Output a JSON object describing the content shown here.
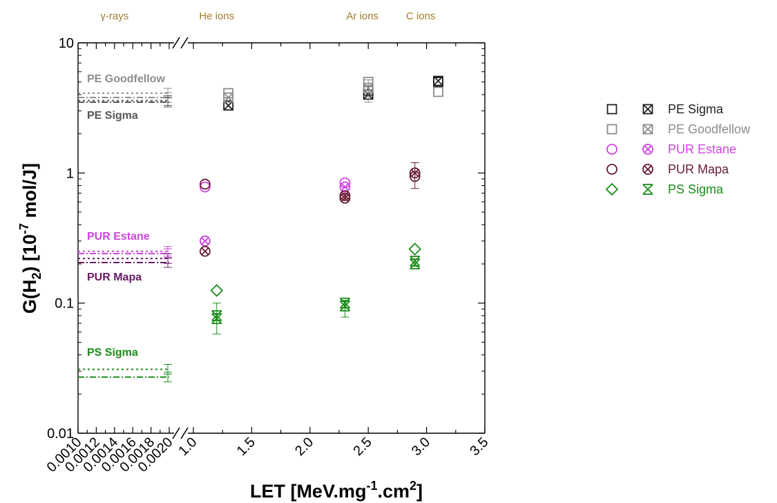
{
  "chart_data": {
    "type": "scatter",
    "xlabel": "LET [MeV.mg-1.cm2]",
    "ylabel": "G(H2) [10-7 mol/J]",
    "yscale": "log",
    "ylim": [
      0.01,
      10
    ],
    "y_tick_labels": [
      "10",
      "1",
      "0.1",
      "0.01"
    ],
    "x_axis_broken": true,
    "x_segment_gamma": {
      "xlim": [
        0.001,
        0.002
      ],
      "tick_labels": [
        "0.0010",
        "0.0012",
        "0.0014",
        "0.0016",
        "0.0018",
        "0.0020"
      ]
    },
    "x_segment_ions": {
      "xlim": [
        1.0,
        3.5
      ],
      "tick_labels": [
        "1.0",
        "1.5",
        "2.0",
        "2.5",
        "3.0",
        "3.5"
      ]
    },
    "radiation_labels": [
      {
        "text": "γ-rays",
        "x": 0.0014
      },
      {
        "text": "He ions",
        "x": 1.2
      },
      {
        "text": "Ar ions",
        "x": 2.45
      },
      {
        "text": "C ions",
        "x": 2.95
      }
    ],
    "gamma_reference": [
      {
        "label": "PE Goodfellow",
        "color": "#8c8c8c",
        "values": [
          4.1,
          3.8
        ]
      },
      {
        "label": "PE Sigma",
        "color": "#555555",
        "values": [
          3.6,
          3.5
        ]
      },
      {
        "label": "PUR Estane",
        "color": "#cc44dd",
        "values": [
          0.25,
          0.24
        ]
      },
      {
        "label": "PUR Mapa",
        "color": "#661a66",
        "values": [
          0.22,
          0.205
        ]
      },
      {
        "label": "PS Sigma",
        "color": "#1a8c1a",
        "values": [
          0.031,
          0.027
        ]
      }
    ],
    "series": [
      {
        "name": "PE Sigma",
        "color": "#222222",
        "open": [
          {
            "x": 2.5,
            "y": 4.3
          },
          {
            "x": 3.1,
            "y": 5.0
          }
        ],
        "crossed": [
          {
            "x": 1.3,
            "y": 3.3
          },
          {
            "x": 2.5,
            "y": 4.0
          },
          {
            "x": 3.1,
            "y": 5.1
          }
        ]
      },
      {
        "name": "PE Goodfellow",
        "color": "#8c8c8c",
        "open": [
          {
            "x": 1.3,
            "y": 4.1
          },
          {
            "x": 2.5,
            "y": 5.0
          },
          {
            "x": 3.1,
            "y": 4.2
          }
        ],
        "crossed": [
          {
            "x": 1.3,
            "y": 3.8
          },
          {
            "x": 2.5,
            "y": 4.5
          }
        ]
      },
      {
        "name": "PUR Estane",
        "color": "#cc44dd",
        "open": [
          {
            "x": 1.1,
            "y": 0.78
          },
          {
            "x": 2.3,
            "y": 0.84
          }
        ],
        "crossed": [
          {
            "x": 1.1,
            "y": 0.3
          },
          {
            "x": 2.3,
            "y": 0.78
          }
        ]
      },
      {
        "name": "PUR Mapa",
        "color": "#661a33",
        "open": [
          {
            "x": 1.1,
            "y": 0.82
          },
          {
            "x": 2.9,
            "y": 0.94
          }
        ],
        "crossed": [
          {
            "x": 1.1,
            "y": 0.25
          },
          {
            "x": 2.3,
            "y": 0.67
          },
          {
            "x": 2.3,
            "y": 0.64
          },
          {
            "x": 2.9,
            "y": 1.0
          }
        ]
      },
      {
        "name": "PS Sigma",
        "color": "#1a8c1a",
        "open": [
          {
            "x": 1.2,
            "y": 0.125
          },
          {
            "x": 2.9,
            "y": 0.26
          }
        ],
        "crossed": [
          {
            "x": 1.2,
            "y": 0.08
          },
          {
            "x": 1.2,
            "y": 0.076
          },
          {
            "x": 2.3,
            "y": 0.1
          },
          {
            "x": 2.3,
            "y": 0.095
          },
          {
            "x": 2.9,
            "y": 0.21
          },
          {
            "x": 2.9,
            "y": 0.2
          }
        ]
      }
    ],
    "legend_position": "right",
    "grid": false
  }
}
